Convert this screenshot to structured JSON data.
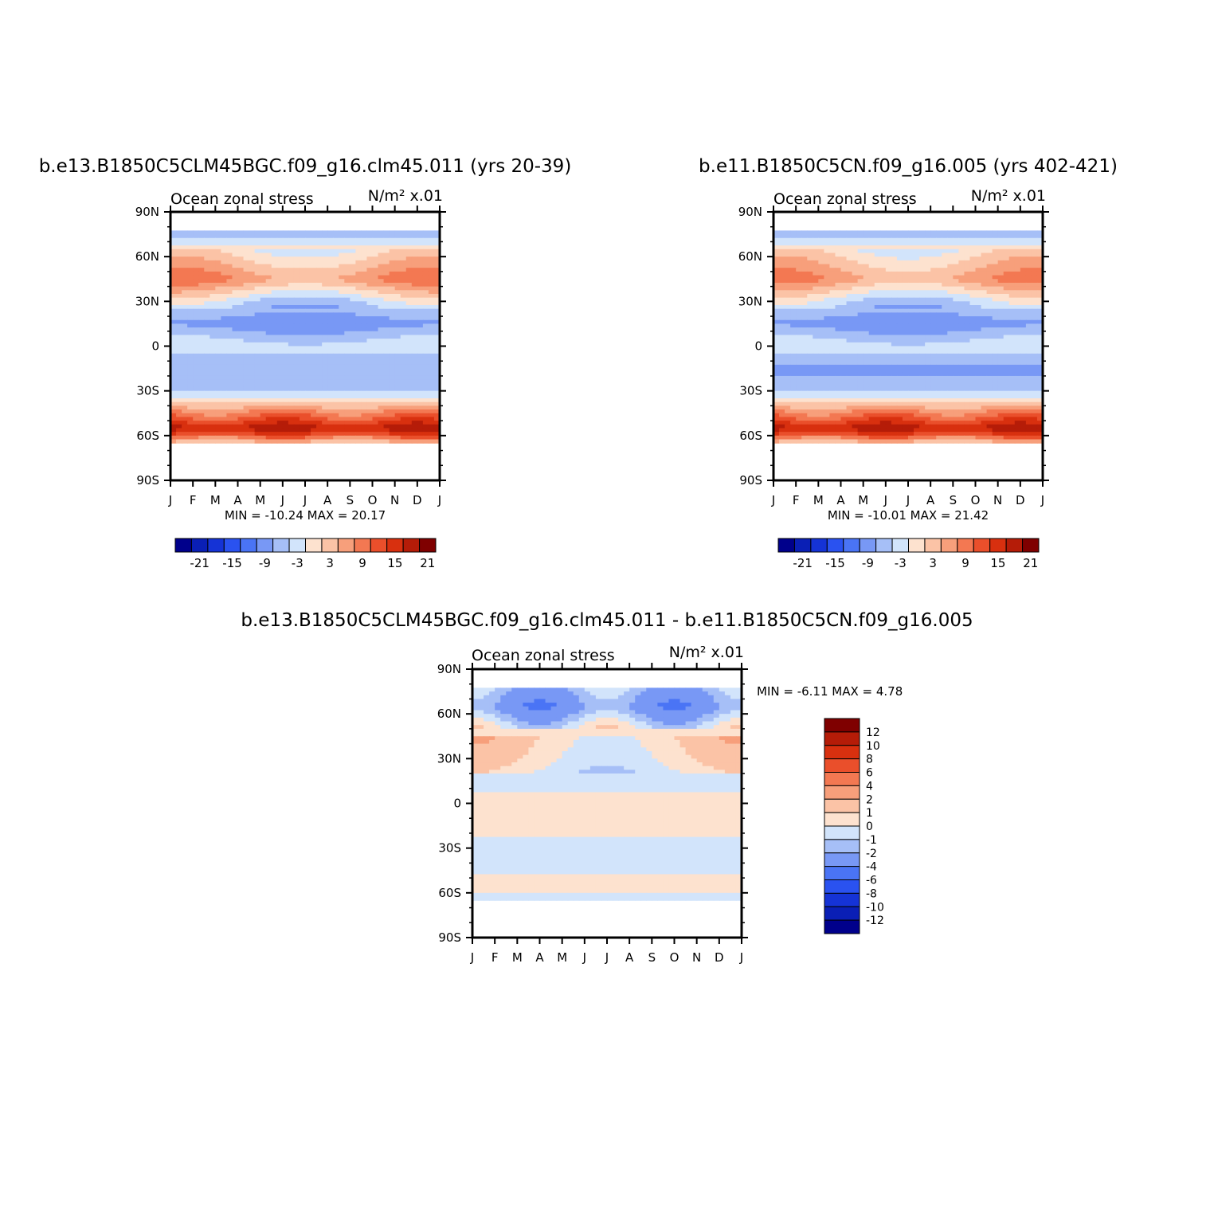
{
  "figure": {
    "panel1_title": "b.e13.B1850C5CLM45BGC.f09_g16.clm45.011 (yrs 20-39)",
    "panel2_title": "b.e11.B1850C5CN.f09_g16.005 (yrs 402-421)",
    "panel3_title": "b.e13.B1850C5CLM45BGC.f09_g16.clm45.011 - b.e11.B1850C5CN.f09_g16.005"
  },
  "chart_data": [
    {
      "type": "heatmap",
      "title": "b.e13.B1850C5CLM45BGC.f09_g16.clm45.011 (yrs 20-39)",
      "left_string": "Ocean zonal stress",
      "right_string": "N/m² x.01",
      "x_ticks": [
        "J",
        "F",
        "M",
        "A",
        "M",
        "J",
        "J",
        "A",
        "S",
        "O",
        "N",
        "D",
        "J"
      ],
      "y_ticks": [
        "90N",
        "60N",
        "30N",
        "0",
        "30S",
        "60S",
        "90S"
      ],
      "ylim": [
        -90,
        90
      ],
      "stats_text": "MIN = -10.24 MAX =  20.17",
      "min": -10.24,
      "max": 20.17,
      "colorbar_labels": [
        "-21",
        "-15",
        "-9",
        "-3",
        "3",
        "9",
        "15",
        "21"
      ],
      "colorbar_levels": [
        -24,
        -21,
        -18,
        -15,
        -12,
        -9,
        -6,
        -3,
        0,
        3,
        6,
        9,
        12,
        15,
        18,
        21,
        24
      ],
      "field_by_latitude": {
        "lat": [
          78,
          70,
          60,
          45,
          30,
          15,
          0,
          -15,
          -30,
          -45,
          -55,
          -60,
          -65
        ],
        "values": [
          -6,
          -1,
          3,
          9,
          -2,
          -8,
          -1,
          -6,
          -4,
          10,
          19,
          13,
          3
        ]
      }
    },
    {
      "type": "heatmap",
      "title": "b.e11.B1850C5CN.f09_g16.005 (yrs 402-421)",
      "left_string": "Ocean zonal stress",
      "right_string": "N/m² x.01",
      "x_ticks": [
        "J",
        "F",
        "M",
        "A",
        "M",
        "J",
        "J",
        "A",
        "S",
        "O",
        "N",
        "D",
        "J"
      ],
      "y_ticks": [
        "90N",
        "60N",
        "30N",
        "0",
        "30S",
        "60S",
        "90S"
      ],
      "ylim": [
        -90,
        90
      ],
      "stats_text": "MIN = -10.01 MAX =  21.42",
      "min": -10.01,
      "max": 21.42,
      "colorbar_labels": [
        "-21",
        "-15",
        "-9",
        "-3",
        "3",
        "9",
        "15",
        "21"
      ],
      "colorbar_levels": [
        -24,
        -21,
        -18,
        -15,
        -12,
        -9,
        -6,
        -3,
        0,
        3,
        6,
        9,
        12,
        15,
        18,
        21,
        24
      ],
      "field_by_latitude": {
        "lat": [
          78,
          70,
          60,
          45,
          30,
          15,
          0,
          -15,
          -30,
          -45,
          -55,
          -60,
          -65
        ],
        "values": [
          -6,
          -1,
          3,
          8,
          -2,
          -8,
          -1,
          -7,
          -4,
          10,
          19,
          13,
          3
        ]
      }
    },
    {
      "type": "heatmap",
      "title": "b.e13.B1850C5CLM45BGC.f09_g16.clm45.011 - b.e11.B1850C5CN.f09_g16.005",
      "left_string": "Ocean zonal stress",
      "right_string": "N/m² x.01",
      "x_ticks": [
        "J",
        "F",
        "M",
        "A",
        "M",
        "J",
        "J",
        "A",
        "S",
        "O",
        "N",
        "D",
        "J"
      ],
      "y_ticks": [
        "90N",
        "60N",
        "30N",
        "0",
        "30S",
        "60S",
        "90S"
      ],
      "ylim": [
        -90,
        90
      ],
      "stats_text": "MIN =  -6.11 MAX =   4.78",
      "min": -6.11,
      "max": 4.78,
      "colorbar_labels": [
        "12",
        "10",
        "8",
        "6",
        "4",
        "2",
        "1",
        "0",
        "-1",
        "-2",
        "-4",
        "-6",
        "-8",
        "-10",
        "-12"
      ],
      "colorbar_levels": [
        -12,
        -10,
        -8,
        -6,
        -4,
        -2,
        -1,
        0,
        1,
        2,
        4,
        6,
        8,
        10,
        12
      ],
      "field_by_latitude": {
        "lat": [
          78,
          65,
          45,
          30,
          15,
          0,
          -15,
          -30,
          -45,
          -55,
          -65
        ],
        "values": [
          -1.5,
          -3,
          1,
          0.5,
          -0.5,
          0.5,
          0.5,
          -0.5,
          -0.5,
          1,
          -1
        ]
      }
    }
  ],
  "colors": {
    "panel_palette": [
      "#00008b",
      "#0a1fb5",
      "#1533d6",
      "#2a52f0",
      "#4a74f5",
      "#7898f5",
      "#a6bff7",
      "#d2e4fb",
      "#fde2cf",
      "#fbc3a6",
      "#f79f7b",
      "#f37852",
      "#ea4f2b",
      "#d8300f",
      "#b51c08",
      "#7f0000"
    ],
    "diff_palette": [
      "#00008b",
      "#0a1fb5",
      "#1533d6",
      "#2a52f0",
      "#4a74f5",
      "#7898f5",
      "#a6bff7",
      "#d2e4fb",
      "#fde2cf",
      "#fbc3a6",
      "#f79f7b",
      "#f37852",
      "#ea4f2b",
      "#d8300f",
      "#b51c08",
      "#7f0000"
    ]
  }
}
